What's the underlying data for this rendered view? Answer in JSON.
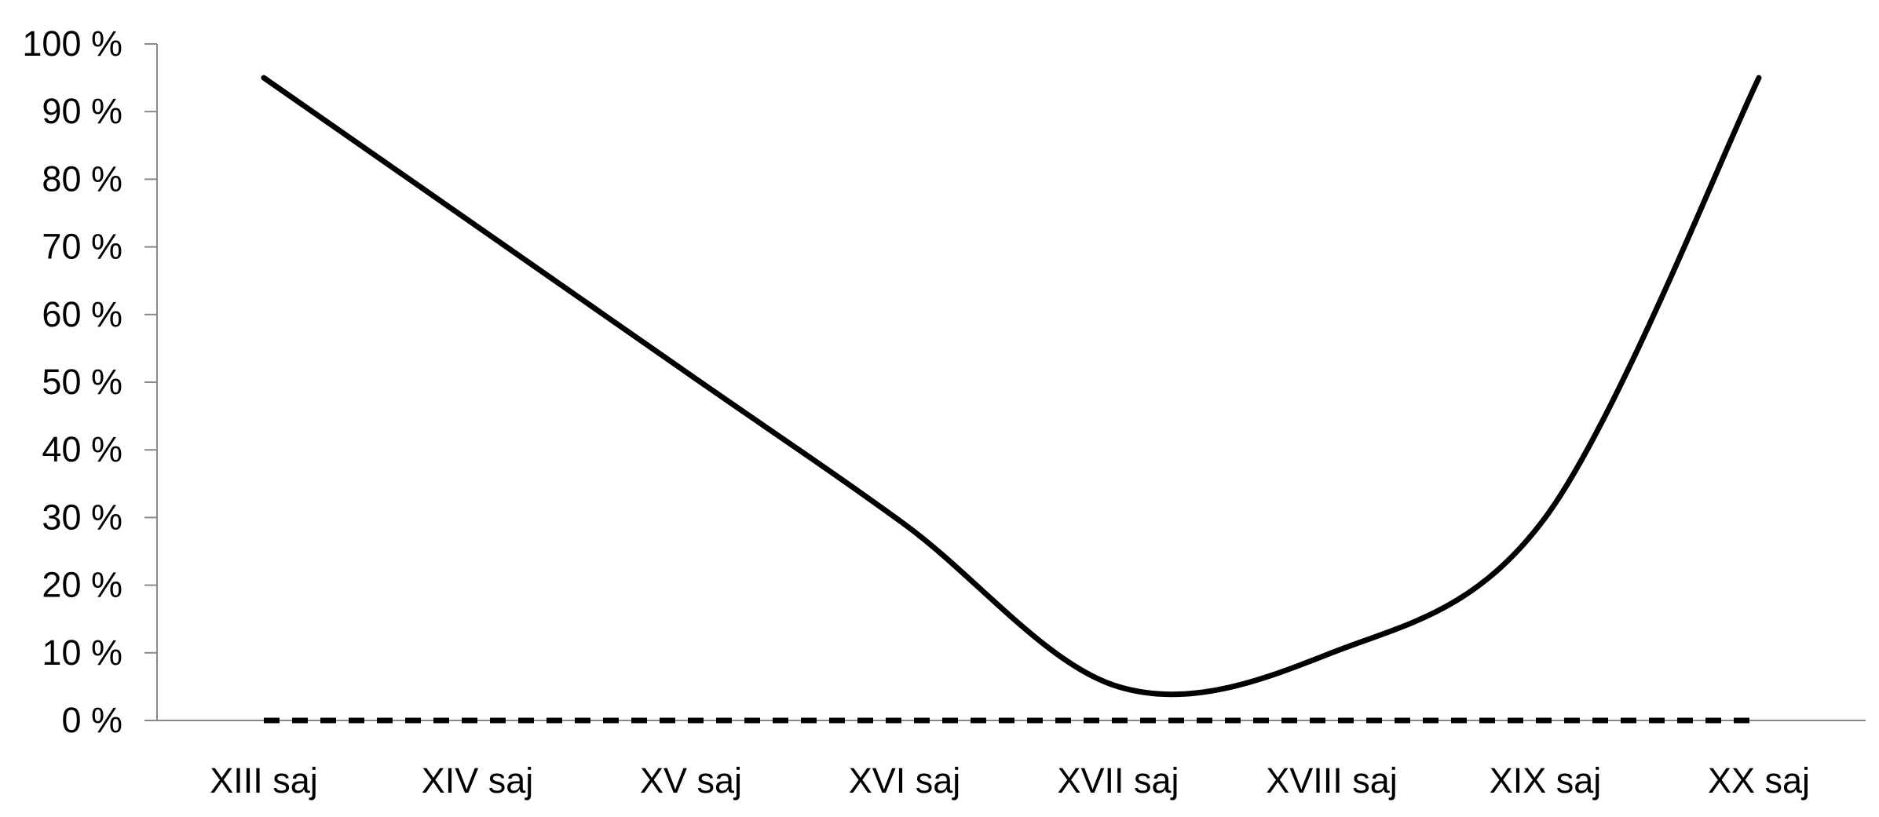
{
  "chart_data": {
    "type": "line",
    "title": "",
    "xlabel": "",
    "ylabel": "",
    "categories": [
      "XIII saj",
      "XIV saj",
      "XV saj",
      "XVI saj",
      "XVII saj",
      "XVIII saj",
      "XIX saj",
      "XX saj"
    ],
    "y_ticks": [
      "0 %",
      "10 %",
      "20 %",
      "30 %",
      "40 %",
      "50 %",
      "60 %",
      "70 %",
      "80 %",
      "90 %",
      "100 %"
    ],
    "ylim": [
      0,
      100
    ],
    "y_step": 10,
    "grid": false,
    "legend": "none",
    "series": [
      {
        "values": [
          95,
          73,
          51,
          29,
          5,
          10,
          30,
          95
        ],
        "style": "solid",
        "color": "#000000",
        "smooth": true
      },
      {
        "values": [
          0,
          0,
          0,
          0,
          0,
          0,
          0,
          0
        ],
        "style": "dashed",
        "color": "#000000",
        "smooth": false
      }
    ],
    "axis_color": "#898989"
  }
}
